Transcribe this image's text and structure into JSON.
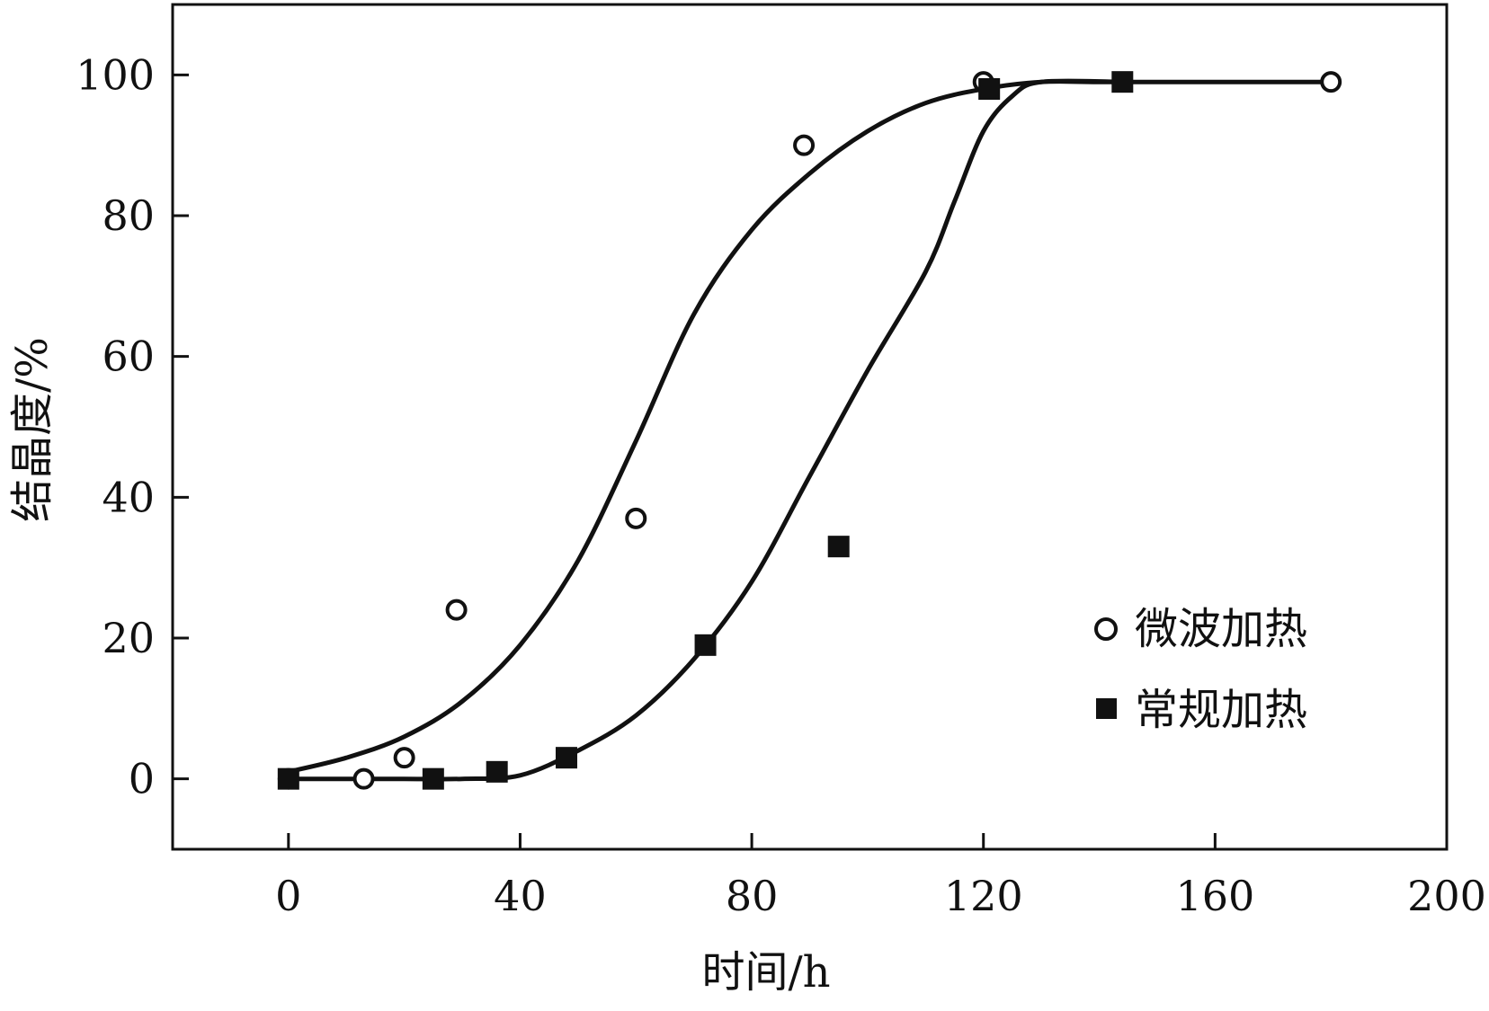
{
  "chart_data": {
    "type": "scatter",
    "title": "",
    "xlabel": "时间/h",
    "ylabel": "结晶度/%",
    "xlim": [
      -20,
      200
    ],
    "ylim": [
      -10,
      110
    ],
    "x_ticks": [
      0,
      40,
      80,
      120,
      160,
      200
    ],
    "y_ticks": [
      0,
      20,
      40,
      60,
      80,
      100
    ],
    "grid": false,
    "legend_position": "right",
    "colors": {
      "ink": "#111111",
      "background": "#ffffff"
    },
    "series": [
      {
        "name": "微波加热",
        "marker": "open-circle",
        "points": [
          {
            "x": 0,
            "y": 0
          },
          {
            "x": 13,
            "y": 0
          },
          {
            "x": 20,
            "y": 3
          },
          {
            "x": 29,
            "y": 24
          },
          {
            "x": 60,
            "y": 37
          },
          {
            "x": 89,
            "y": 90
          },
          {
            "x": 120,
            "y": 99
          },
          {
            "x": 180,
            "y": 99
          }
        ],
        "curve": [
          {
            "x": 0,
            "y": 1
          },
          {
            "x": 10,
            "y": 3
          },
          {
            "x": 20,
            "y": 6
          },
          {
            "x": 30,
            "y": 11
          },
          {
            "x": 40,
            "y": 19
          },
          {
            "x": 50,
            "y": 31
          },
          {
            "x": 60,
            "y": 48
          },
          {
            "x": 70,
            "y": 66
          },
          {
            "x": 80,
            "y": 78
          },
          {
            "x": 90,
            "y": 86
          },
          {
            "x": 100,
            "y": 92
          },
          {
            "x": 110,
            "y": 96
          },
          {
            "x": 120,
            "y": 98
          },
          {
            "x": 130,
            "y": 99
          },
          {
            "x": 140,
            "y": 99
          },
          {
            "x": 160,
            "y": 99
          },
          {
            "x": 180,
            "y": 99
          }
        ]
      },
      {
        "name": "常规加热",
        "marker": "filled-square",
        "points": [
          {
            "x": 0,
            "y": 0
          },
          {
            "x": 25,
            "y": 0
          },
          {
            "x": 36,
            "y": 1
          },
          {
            "x": 48,
            "y": 3
          },
          {
            "x": 72,
            "y": 19
          },
          {
            "x": 95,
            "y": 33
          },
          {
            "x": 121,
            "y": 98
          },
          {
            "x": 144,
            "y": 99
          }
        ],
        "curve": [
          {
            "x": 0,
            "y": 0
          },
          {
            "x": 10,
            "y": 0
          },
          {
            "x": 20,
            "y": 0
          },
          {
            "x": 30,
            "y": 0
          },
          {
            "x": 40,
            "y": 0.5
          },
          {
            "x": 50,
            "y": 4
          },
          {
            "x": 60,
            "y": 9
          },
          {
            "x": 70,
            "y": 17
          },
          {
            "x": 80,
            "y": 28
          },
          {
            "x": 90,
            "y": 43
          },
          {
            "x": 100,
            "y": 58
          },
          {
            "x": 110,
            "y": 72
          },
          {
            "x": 115,
            "y": 82
          },
          {
            "x": 120,
            "y": 92
          },
          {
            "x": 125,
            "y": 97
          },
          {
            "x": 130,
            "y": 99
          },
          {
            "x": 144,
            "y": 99
          }
        ]
      }
    ]
  }
}
